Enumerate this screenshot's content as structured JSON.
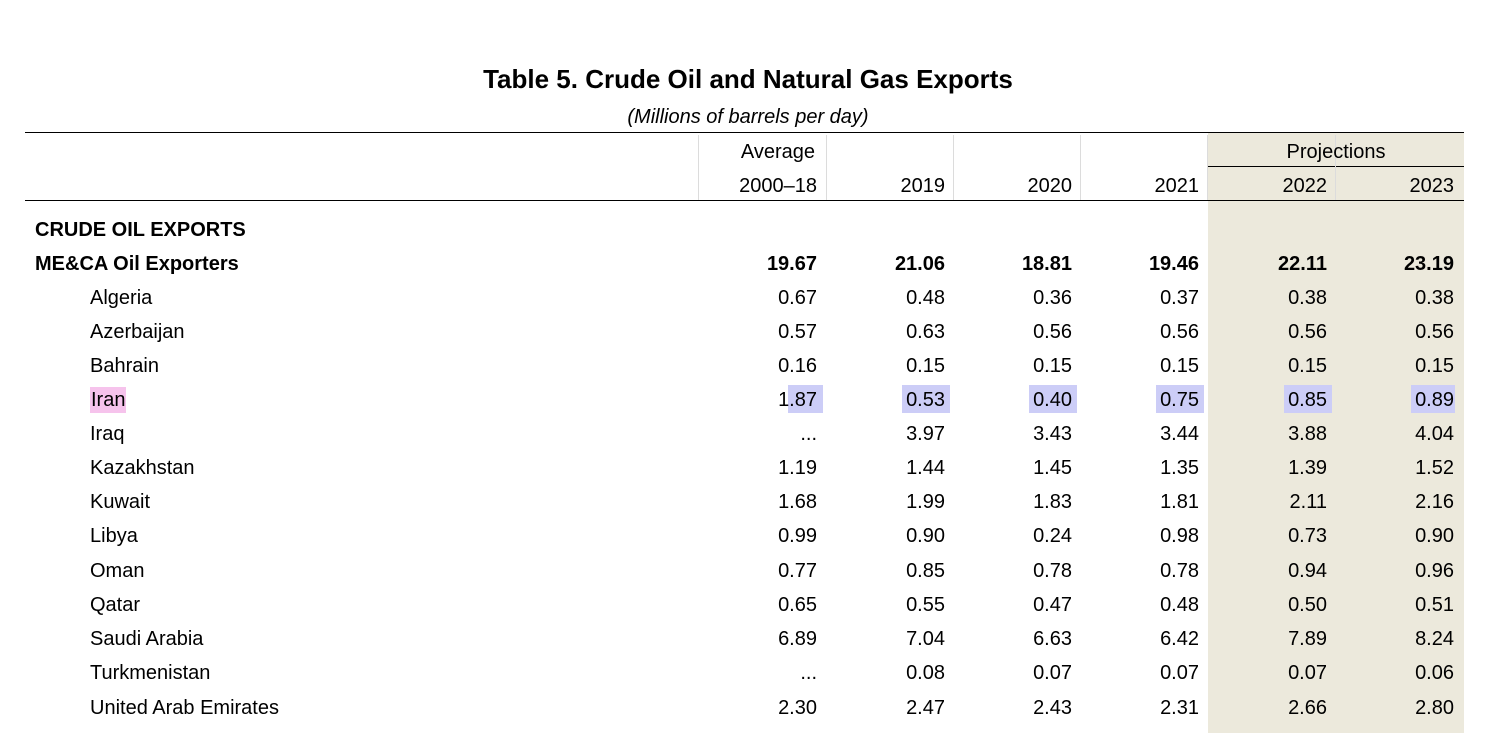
{
  "document": {
    "title": "Table 5. Crude Oil and Natural Gas Exports",
    "subtitle": "(Millions of barrels per day)"
  },
  "header": {
    "projections_label": "Projections",
    "average_label": "Average",
    "columns": [
      "2000–18",
      "2019",
      "2020",
      "2021",
      "2022",
      "2023"
    ]
  },
  "colors": {
    "projection_shade": "#ece9dc",
    "highlight_name": "#f6c3ec",
    "highlight_values": "#cccdf7"
  },
  "sections": [
    {
      "title": "CRUDE OIL EXPORTS",
      "group": {
        "name": "ME&CA Oil Exporters",
        "values": [
          "19.67",
          "21.06",
          "18.81",
          "19.46",
          "22.11",
          "23.19"
        ]
      },
      "rows": [
        {
          "name": "Algeria",
          "values": [
            "0.67",
            "0.48",
            "0.36",
            "0.37",
            "0.38",
            "0.38"
          ]
        },
        {
          "name": "Azerbaijan",
          "values": [
            "0.57",
            "0.63",
            "0.56",
            "0.56",
            "0.56",
            "0.56"
          ]
        },
        {
          "name": "Bahrain",
          "values": [
            "0.16",
            "0.15",
            "0.15",
            "0.15",
            "0.15",
            "0.15"
          ]
        },
        {
          "name": "Iran",
          "values": [
            "1.87",
            "0.53",
            "0.40",
            "0.75",
            "0.85",
            "0.89"
          ],
          "highlighted": true
        },
        {
          "name": "Iraq",
          "values": [
            "...",
            "3.97",
            "3.43",
            "3.44",
            "3.88",
            "4.04"
          ]
        },
        {
          "name": "Kazakhstan",
          "values": [
            "1.19",
            "1.44",
            "1.45",
            "1.35",
            "1.39",
            "1.52"
          ]
        },
        {
          "name": "Kuwait",
          "values": [
            "1.68",
            "1.99",
            "1.83",
            "1.81",
            "2.11",
            "2.16"
          ]
        },
        {
          "name": "Libya",
          "values": [
            "0.99",
            "0.90",
            "0.24",
            "0.98",
            "0.73",
            "0.90"
          ]
        },
        {
          "name": "Oman",
          "values": [
            "0.77",
            "0.85",
            "0.78",
            "0.78",
            "0.94",
            "0.96"
          ]
        },
        {
          "name": "Qatar",
          "values": [
            "0.65",
            "0.55",
            "0.47",
            "0.48",
            "0.50",
            "0.51"
          ]
        },
        {
          "name": "Saudi Arabia",
          "values": [
            "6.89",
            "7.04",
            "6.63",
            "6.42",
            "7.89",
            "8.24"
          ]
        },
        {
          "name": "Turkmenistan",
          "values": [
            "...",
            "0.08",
            "0.07",
            "0.07",
            "0.07",
            "0.06"
          ]
        },
        {
          "name": "United Arab Emirates",
          "values": [
            "2.30",
            "2.47",
            "2.43",
            "2.31",
            "2.66",
            "2.80"
          ]
        }
      ]
    }
  ]
}
